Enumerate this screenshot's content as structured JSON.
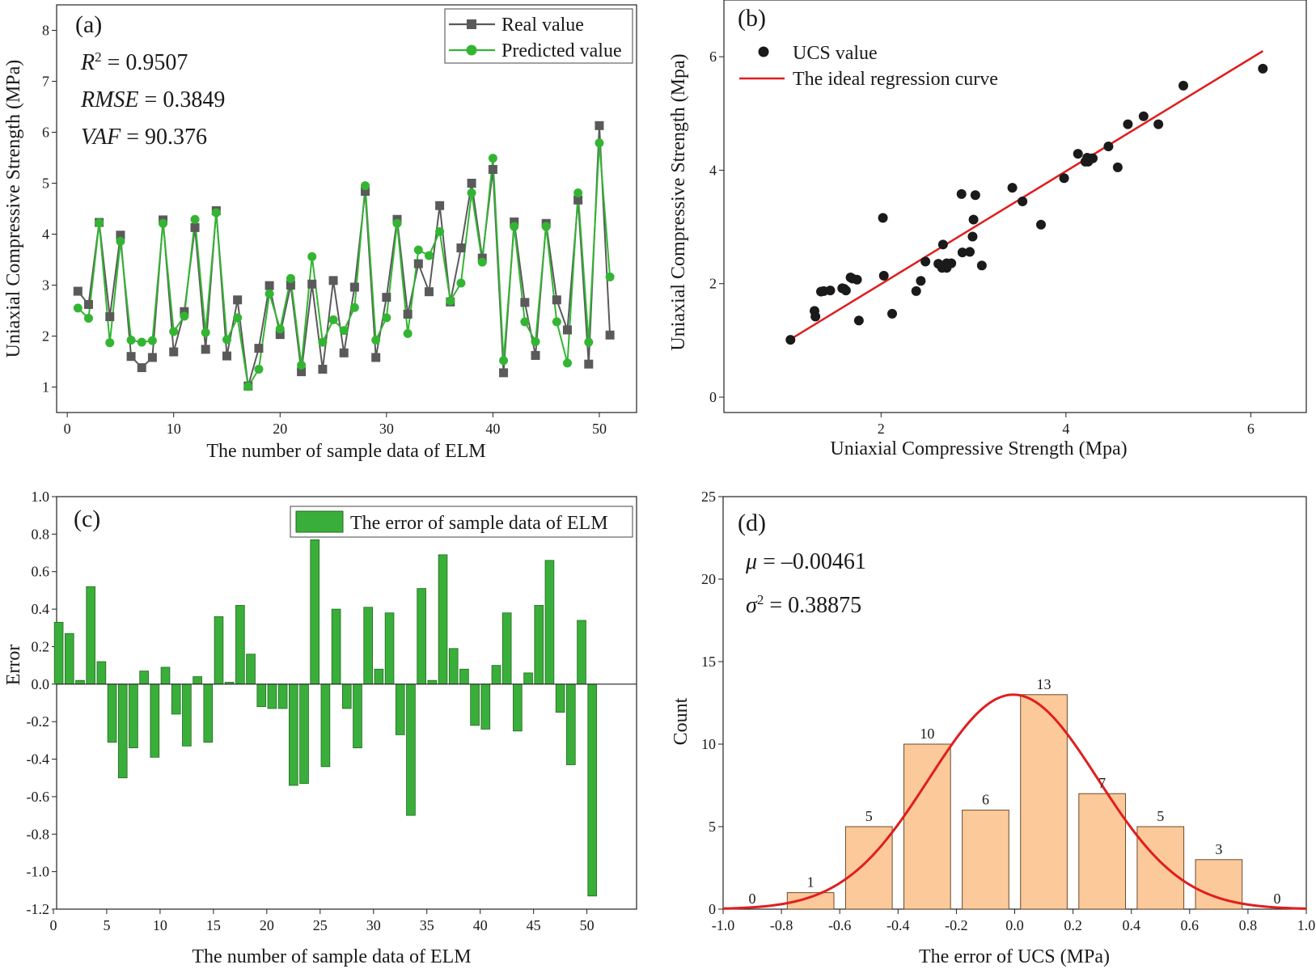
{
  "colors": {
    "real": "#5a5a5a",
    "predicted": "#33b533",
    "bar_c": "#3aae3a",
    "bar_c_edge": "#1f6b1f",
    "regression": "#e01e1e",
    "hist": "#fbc99a",
    "hist_edge": "#6b4a2a",
    "point": "#1a1a1a"
  },
  "chart_data": [
    {
      "panel": "(a)",
      "type": "line",
      "xlabel": "The number of sample data of ELM",
      "ylabel": "Uniaxial Compressive Strength (MPa)",
      "xlim": [
        -1,
        53.5
      ],
      "ylim": [
        0.5,
        8.5
      ],
      "xticks": [
        0,
        10,
        20,
        30,
        40,
        50
      ],
      "yticks": [
        1,
        2,
        3,
        4,
        5,
        6,
        7,
        8
      ],
      "stats": [
        {
          "label": "R",
          "sup": "2",
          "value": "0.9507"
        },
        {
          "label": "RMSE",
          "sup": "",
          "value": "0.3849"
        },
        {
          "label": "VAF",
          "sup": "",
          "value": "90.376"
        }
      ],
      "series": [
        {
          "name": "Real value",
          "marker": "square",
          "values": [
            2.88,
            2.62,
            4.23,
            2.38,
            3.98,
            1.6,
            1.38,
            1.58,
            4.28,
            1.69,
            2.48,
            4.13,
            1.74,
            4.46,
            1.61,
            2.71,
            1.02,
            1.76,
            2.99,
            2.03,
            3.0,
            1.3,
            3.02,
            1.35,
            3.09,
            1.67,
            2.96,
            4.84,
            1.58,
            2.76,
            4.29,
            2.43,
            3.42,
            2.87,
            4.56,
            2.67,
            3.73,
            5.0,
            3.53,
            5.27,
            1.28,
            4.24,
            2.66,
            1.62,
            4.21,
            2.71,
            2.12,
            4.67,
            1.45,
            6.13,
            2.02
          ]
        },
        {
          "name": "Predicted value",
          "marker": "circle",
          "values": [
            2.55,
            2.35,
            4.22,
            1.87,
            3.86,
            1.92,
            1.88,
            1.91,
            4.21,
            2.09,
            2.39,
            4.29,
            2.07,
            4.42,
            1.93,
            2.36,
            1.01,
            1.35,
            2.83,
            2.14,
            3.13,
            1.43,
            3.56,
            1.88,
            2.32,
            2.11,
            2.56,
            4.95,
            1.92,
            2.36,
            4.21,
            2.05,
            3.69,
            3.58,
            4.05,
            2.69,
            3.04,
            4.81,
            3.45,
            5.49,
            1.52,
            4.15,
            2.28,
            1.89,
            4.15,
            2.28,
            1.47,
            4.81,
            1.88,
            5.79,
            3.16
          ]
        }
      ]
    },
    {
      "panel": "(b)",
      "type": "scatter",
      "xlabel": "Uniaxial Compressive Strength (Mpa)",
      "ylabel": "Uniaxial Compressive Strength (Mpa)",
      "xlim": [
        0.3,
        6.6
      ],
      "ylim": [
        0,
        7
      ],
      "xticks": [
        2,
        4,
        6
      ],
      "yticks": [
        0,
        2,
        4,
        6
      ],
      "legend": [
        "UCS value",
        "The ideal regression curve"
      ],
      "regression": [
        [
          1.02,
          1.02
        ],
        [
          6.13,
          6.1
        ]
      ],
      "points": [
        [
          1.02,
          1.01
        ],
        [
          1.28,
          1.52
        ],
        [
          1.29,
          1.42
        ],
        [
          1.35,
          1.86
        ],
        [
          1.38,
          1.87
        ],
        [
          1.45,
          1.88
        ],
        [
          1.58,
          1.92
        ],
        [
          1.6,
          1.91
        ],
        [
          1.62,
          1.88
        ],
        [
          1.67,
          2.11
        ],
        [
          1.69,
          2.09
        ],
        [
          1.74,
          2.07
        ],
        [
          1.76,
          1.35
        ],
        [
          2.02,
          3.16
        ],
        [
          2.03,
          2.14
        ],
        [
          2.12,
          1.47
        ],
        [
          2.38,
          1.87
        ],
        [
          2.43,
          2.05
        ],
        [
          2.48,
          2.39
        ],
        [
          2.62,
          2.35
        ],
        [
          2.66,
          2.28
        ],
        [
          2.67,
          2.69
        ],
        [
          2.71,
          2.28
        ],
        [
          2.71,
          2.36
        ],
        [
          2.76,
          2.36
        ],
        [
          2.87,
          3.58
        ],
        [
          2.88,
          2.55
        ],
        [
          2.96,
          2.56
        ],
        [
          2.99,
          2.83
        ],
        [
          3.0,
          3.13
        ],
        [
          3.02,
          3.56
        ],
        [
          3.09,
          2.32
        ],
        [
          3.42,
          3.69
        ],
        [
          3.53,
          3.45
        ],
        [
          3.73,
          3.04
        ],
        [
          3.98,
          3.86
        ],
        [
          4.13,
          4.29
        ],
        [
          4.21,
          4.15
        ],
        [
          4.23,
          4.22
        ],
        [
          4.24,
          4.15
        ],
        [
          4.28,
          4.21
        ],
        [
          4.29,
          4.21
        ],
        [
          4.46,
          4.42
        ],
        [
          4.56,
          4.05
        ],
        [
          4.67,
          4.81
        ],
        [
          4.84,
          4.95
        ],
        [
          5.0,
          4.81
        ],
        [
          5.27,
          5.49
        ],
        [
          6.13,
          5.79
        ]
      ]
    },
    {
      "panel": "(c)",
      "type": "bar",
      "xlabel": "The number of sample data of ELM",
      "ylabel": "Error",
      "xlim": [
        0,
        52
      ],
      "ylim": [
        -1.2,
        1.0
      ],
      "xticks": [
        0,
        5,
        10,
        15,
        20,
        25,
        30,
        35,
        40,
        45,
        50
      ],
      "yticks": [
        -1.2,
        -1.0,
        -0.8,
        -0.6,
        -0.4,
        -0.2,
        0.0,
        0.2,
        0.4,
        0.6,
        0.8,
        1.0
      ],
      "legend": [
        "The error of sample data of ELM"
      ],
      "values": [
        0.33,
        0.27,
        0.02,
        0.52,
        0.12,
        -0.31,
        -0.5,
        -0.34,
        0.07,
        -0.39,
        0.09,
        -0.16,
        -0.33,
        0.04,
        -0.31,
        0.36,
        0.01,
        0.42,
        0.16,
        -0.12,
        -0.13,
        -0.13,
        -0.54,
        -0.53,
        0.77,
        -0.44,
        0.4,
        -0.13,
        -0.34,
        0.41,
        0.08,
        0.38,
        -0.27,
        -0.7,
        0.51,
        0.02,
        0.69,
        0.19,
        0.08,
        -0.22,
        -0.24,
        0.1,
        0.38,
        -0.25,
        0.06,
        0.42,
        0.66,
        -0.15,
        -0.43,
        0.34,
        -1.13
      ]
    },
    {
      "panel": "(d)",
      "type": "histogram",
      "xlabel": "The error of UCS (MPa)",
      "ylabel": "Count",
      "xlim": [
        -1.0,
        1.0
      ],
      "ylim": [
        0,
        25
      ],
      "xticks": [
        -1.0,
        -0.8,
        -0.6,
        -0.4,
        -0.2,
        0.0,
        0.2,
        0.4,
        0.6,
        0.8,
        1.0
      ],
      "yticks": [
        0,
        5,
        10,
        15,
        20,
        25
      ],
      "stats": [
        {
          "label": "μ",
          "sup": "",
          "value": "–0.00461"
        },
        {
          "label": "σ",
          "sup": "2",
          "value": "0.38875"
        }
      ],
      "bin_start": -1.0,
      "bin_width": 0.2,
      "counts": [
        0,
        1,
        5,
        10,
        6,
        13,
        7,
        5,
        3,
        0
      ],
      "curve": {
        "mean": -0.00461,
        "sd": 0.29,
        "peak": 13
      }
    }
  ]
}
